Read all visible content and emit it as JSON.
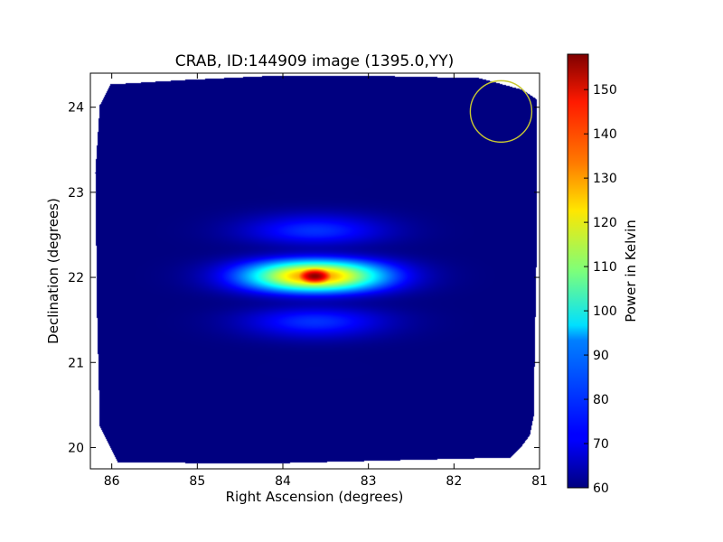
{
  "chart_data": {
    "type": "heatmap",
    "title": "CRAB, ID:144909 image (1395.0,YY)",
    "xlabel": "Right Ascension (degrees)",
    "ylabel": "Declination (degrees)",
    "xlim": [
      86.25,
      81.0
    ],
    "ylim": [
      19.75,
      24.4
    ],
    "x_ticks": [
      86,
      85,
      84,
      83,
      82,
      81
    ],
    "y_ticks": [
      20,
      21,
      22,
      23,
      24
    ],
    "x_tick_labels": [
      "86",
      "85",
      "84",
      "83",
      "82",
      "81"
    ],
    "y_tick_labels": [
      "20",
      "21",
      "22",
      "23",
      "24"
    ],
    "background_value": 60,
    "source": {
      "ra": 83.63,
      "dec": 22.02,
      "peak_value": 157
    },
    "beam_marker": {
      "ra": 81.45,
      "dec": 23.95,
      "color": "#c8c832"
    },
    "colorbar": {
      "label": "Power in Kelvin",
      "min": 60,
      "max": 158,
      "ticks": [
        60,
        70,
        80,
        90,
        100,
        110,
        120,
        130,
        140,
        150
      ],
      "tick_labels": [
        "60",
        "70",
        "80",
        "90",
        "100",
        "110",
        "120",
        "130",
        "140",
        "150"
      ],
      "colormap": "jet"
    }
  }
}
